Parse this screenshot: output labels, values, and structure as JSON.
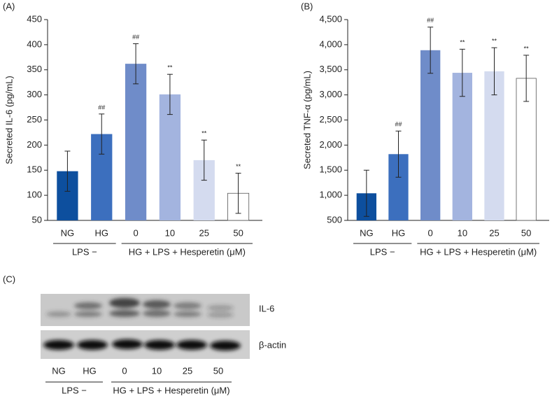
{
  "chart_data": [
    {
      "type": "bar",
      "panel": "(A)",
      "ylabel": "Secreted IL-6 (pg/mL)",
      "categories": [
        "NG",
        "HG",
        "0",
        "10",
        "25",
        "50"
      ],
      "values": [
        148,
        222,
        362,
        301,
        170,
        104
      ],
      "errors": [
        40,
        40,
        40,
        40,
        40,
        40
      ],
      "annotations": [
        null,
        "##",
        "##",
        "**",
        "**",
        "**"
      ],
      "colors": [
        "#0d4f9e",
        "#3c6fbe",
        "#6f8cc9",
        "#a3b4df",
        "#d4dbef",
        "#ffffff"
      ],
      "group_labels": [
        "LPS −",
        "HG + LPS + Hesperetin (μM)"
      ],
      "ylim": [
        50,
        450
      ],
      "yticks": [
        50,
        100,
        150,
        200,
        250,
        300,
        350,
        400,
        450
      ]
    },
    {
      "type": "bar",
      "panel": "(B)",
      "ylabel": "Secreted TNF-α (pg/mL)",
      "categories": [
        "NG",
        "HG",
        "0",
        "10",
        "25",
        "50"
      ],
      "values": [
        1040,
        1820,
        3890,
        3440,
        3470,
        3330
      ],
      "errors": [
        460,
        460,
        460,
        470,
        470,
        460
      ],
      "annotations": [
        null,
        "##",
        "##",
        "**",
        "**",
        "**"
      ],
      "colors": [
        "#0d4f9e",
        "#3c6fbe",
        "#6f8cc9",
        "#a3b4df",
        "#d4dbef",
        "#ffffff"
      ],
      "group_labels": [
        "LPS −",
        "HG + LPS + Hesperetin (μM)"
      ],
      "ylim": [
        500,
        4500
      ],
      "yticks": [
        500,
        {
          "value": 1000,
          "label": "1,000"
        },
        {
          "value": 1500,
          "label": "1,500"
        },
        {
          "value": 2000,
          "label": "2,000"
        },
        {
          "value": 2500,
          "label": "2,500"
        },
        {
          "value": 3000,
          "label": "3,000"
        },
        {
          "value": 3500,
          "label": "3,500"
        },
        {
          "value": 4000,
          "label": "4,000"
        },
        {
          "value": 4500,
          "label": "4,500"
        }
      ]
    }
  ],
  "blot": {
    "panel": "(C)",
    "bands": [
      "IL-6",
      "β-actin"
    ],
    "lanes": [
      "NG",
      "HG",
      "0",
      "10",
      "25",
      "50"
    ],
    "group_labels": [
      "LPS −",
      "HG + LPS + Hesperetin (μM)"
    ]
  }
}
